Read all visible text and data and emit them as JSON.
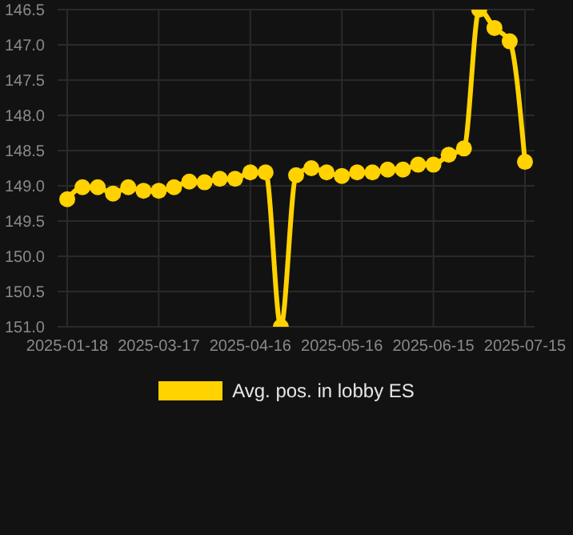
{
  "chart_data": {
    "type": "line",
    "categories": [
      "2025-01-18",
      null,
      null,
      null,
      null,
      null,
      "2025-03-17",
      null,
      null,
      null,
      null,
      null,
      "2025-04-16",
      null,
      null,
      null,
      null,
      null,
      "2025-05-16",
      null,
      null,
      null,
      null,
      null,
      "2025-06-15",
      null,
      null,
      null,
      null,
      null,
      "2025-07-15"
    ],
    "series": [
      {
        "name": "Avg. pos. in lobby ES",
        "color": "#ffd200",
        "values": [
          149.19,
          149.02,
          149.02,
          149.11,
          149.02,
          149.07,
          149.07,
          149.02,
          148.94,
          148.95,
          148.9,
          148.9,
          148.81,
          148.81,
          151.0,
          148.85,
          148.75,
          148.81,
          148.86,
          148.81,
          148.81,
          148.77,
          148.77,
          148.7,
          148.7,
          148.56,
          148.47,
          146.5,
          146.76,
          146.95,
          148.66
        ]
      }
    ],
    "ylim": [
      151.0,
      146.5
    ],
    "yticks": [
      {
        "value": 146.5,
        "label": "146.5"
      },
      {
        "value": 147.0,
        "label": "147.0"
      },
      {
        "value": 147.5,
        "label": "147.5"
      },
      {
        "value": 148.0,
        "label": "148.0"
      },
      {
        "value": 148.5,
        "label": "148.5"
      },
      {
        "value": 149.0,
        "label": "149.0"
      },
      {
        "value": 149.5,
        "label": "149.5"
      },
      {
        "value": 150.0,
        "label": "150.0"
      },
      {
        "value": 150.5,
        "label": "150.5"
      },
      {
        "value": 151.0,
        "label": "151.0"
      }
    ],
    "grid": true,
    "legend": "bottom",
    "marker": "circle",
    "line_style": "solid"
  }
}
